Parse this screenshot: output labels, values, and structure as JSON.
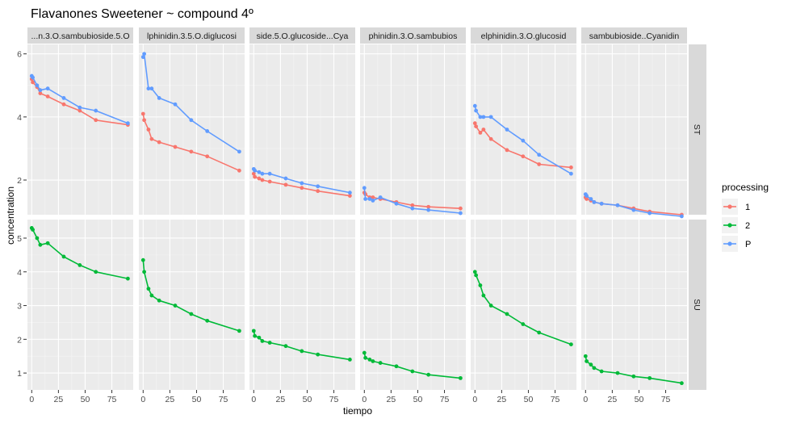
{
  "chart_data": {
    "type": "scatter",
    "title": "Flavanones Sweetener ~ compound 4º",
    "xlabel": "tiempo",
    "ylabel": "concentration",
    "x_ticks": [
      "0",
      "25",
      "50",
      "75"
    ],
    "x_tick_values": [
      0,
      25,
      50,
      75
    ],
    "xlim": [
      -4,
      95
    ],
    "columns": [
      "...n.3.O.sambubioside.5.O",
      "lphinidin.3.5.O.diglucosi",
      "side.5.O.glucoside...Cya",
      "phinidin.3.O.sambubios",
      "elphinidin.3.O.glucosid",
      "sambubioside..Cyanidin"
    ],
    "rows": [
      {
        "label": "ST",
        "ylim": [
          0.9,
          6.3
        ],
        "y_ticks": [
          "2",
          "4",
          "6"
        ],
        "y_tick_values": [
          2,
          4,
          6
        ]
      },
      {
        "label": "SU",
        "ylim": [
          0.5,
          5.55
        ],
        "y_ticks": [
          "1",
          "2",
          "3",
          "4",
          "5"
        ],
        "y_tick_values": [
          1,
          2,
          3,
          4,
          5
        ]
      }
    ],
    "legend": {
      "title": "processing",
      "placement": "right",
      "items": [
        {
          "label": "1",
          "color": "#F8766D"
        },
        {
          "label": "2",
          "color": "#00BA38"
        },
        {
          "label": "P",
          "color": "#619CFF"
        }
      ]
    },
    "x_times": [
      0,
      1,
      5,
      8,
      15,
      30,
      45,
      60,
      90
    ],
    "panels": [
      {
        "row": 0,
        "col": 0,
        "series": [
          {
            "name": "1",
            "color": "#F8766D",
            "points": [
              [
                0,
                5.2
              ],
              [
                1,
                5.1
              ],
              [
                5,
                4.95
              ],
              [
                8,
                4.75
              ],
              [
                15,
                4.65
              ],
              [
                30,
                4.4
              ],
              [
                45,
                4.2
              ],
              [
                60,
                3.9
              ],
              [
                90,
                3.75
              ]
            ]
          },
          {
            "name": "P",
            "color": "#619CFF",
            "points": [
              [
                0,
                5.3
              ],
              [
                1,
                5.25
              ],
              [
                5,
                5.0
              ],
              [
                8,
                4.85
              ],
              [
                15,
                4.9
              ],
              [
                30,
                4.6
              ],
              [
                45,
                4.3
              ],
              [
                60,
                4.2
              ],
              [
                90,
                3.8
              ]
            ]
          }
        ]
      },
      {
        "row": 0,
        "col": 1,
        "series": [
          {
            "name": "1",
            "color": "#F8766D",
            "points": [
              [
                0,
                4.1
              ],
              [
                1,
                3.9
              ],
              [
                5,
                3.6
              ],
              [
                8,
                3.3
              ],
              [
                15,
                3.2
              ],
              [
                30,
                3.05
              ],
              [
                45,
                2.9
              ],
              [
                60,
                2.75
              ],
              [
                90,
                2.3
              ]
            ]
          },
          {
            "name": "P",
            "color": "#619CFF",
            "points": [
              [
                0,
                5.9
              ],
              [
                1,
                6.0
              ],
              [
                5,
                4.9
              ],
              [
                8,
                4.9
              ],
              [
                15,
                4.6
              ],
              [
                30,
                4.4
              ],
              [
                45,
                3.9
              ],
              [
                60,
                3.55
              ],
              [
                90,
                2.9
              ]
            ]
          }
        ]
      },
      {
        "row": 0,
        "col": 2,
        "series": [
          {
            "name": "1",
            "color": "#F8766D",
            "points": [
              [
                0,
                2.2
              ],
              [
                1,
                2.1
              ],
              [
                5,
                2.05
              ],
              [
                8,
                2.0
              ],
              [
                15,
                1.95
              ],
              [
                30,
                1.85
              ],
              [
                45,
                1.75
              ],
              [
                60,
                1.65
              ],
              [
                90,
                1.5
              ]
            ]
          },
          {
            "name": "P",
            "color": "#619CFF",
            "points": [
              [
                0,
                2.35
              ],
              [
                1,
                2.3
              ],
              [
                5,
                2.25
              ],
              [
                8,
                2.2
              ],
              [
                15,
                2.2
              ],
              [
                30,
                2.05
              ],
              [
                45,
                1.9
              ],
              [
                60,
                1.8
              ],
              [
                90,
                1.6
              ]
            ]
          }
        ]
      },
      {
        "row": 0,
        "col": 3,
        "series": [
          {
            "name": "1",
            "color": "#F8766D",
            "points": [
              [
                0,
                1.6
              ],
              [
                1,
                1.55
              ],
              [
                5,
                1.45
              ],
              [
                8,
                1.45
              ],
              [
                15,
                1.4
              ],
              [
                30,
                1.3
              ],
              [
                45,
                1.2
              ],
              [
                60,
                1.15
              ],
              [
                90,
                1.1
              ]
            ]
          },
          {
            "name": "P",
            "color": "#619CFF",
            "points": [
              [
                0,
                1.75
              ],
              [
                1,
                1.4
              ],
              [
                5,
                1.4
              ],
              [
                8,
                1.35
              ],
              [
                15,
                1.45
              ],
              [
                30,
                1.25
              ],
              [
                45,
                1.1
              ],
              [
                60,
                1.05
              ],
              [
                90,
                0.95
              ]
            ]
          }
        ]
      },
      {
        "row": 0,
        "col": 4,
        "series": [
          {
            "name": "1",
            "color": "#F8766D",
            "points": [
              [
                0,
                3.8
              ],
              [
                1,
                3.7
              ],
              [
                5,
                3.5
              ],
              [
                8,
                3.6
              ],
              [
                15,
                3.3
              ],
              [
                30,
                2.95
              ],
              [
                45,
                2.75
              ],
              [
                60,
                2.5
              ],
              [
                90,
                2.4
              ]
            ]
          },
          {
            "name": "P",
            "color": "#619CFF",
            "points": [
              [
                0,
                4.35
              ],
              [
                1,
                4.2
              ],
              [
                5,
                4.0
              ],
              [
                8,
                4.0
              ],
              [
                15,
                4.0
              ],
              [
                30,
                3.6
              ],
              [
                45,
                3.25
              ],
              [
                60,
                2.8
              ],
              [
                90,
                2.2
              ]
            ]
          }
        ]
      },
      {
        "row": 0,
        "col": 5,
        "series": [
          {
            "name": "1",
            "color": "#F8766D",
            "points": [
              [
                0,
                1.45
              ],
              [
                1,
                1.4
              ],
              [
                5,
                1.35
              ],
              [
                8,
                1.3
              ],
              [
                15,
                1.25
              ],
              [
                30,
                1.2
              ],
              [
                45,
                1.1
              ],
              [
                60,
                1.0
              ],
              [
                90,
                0.9
              ]
            ]
          },
          {
            "name": "P",
            "color": "#619CFF",
            "points": [
              [
                0,
                1.55
              ],
              [
                1,
                1.5
              ],
              [
                5,
                1.4
              ],
              [
                8,
                1.3
              ],
              [
                15,
                1.25
              ],
              [
                30,
                1.2
              ],
              [
                45,
                1.05
              ],
              [
                60,
                0.95
              ],
              [
                90,
                0.85
              ]
            ]
          }
        ]
      },
      {
        "row": 1,
        "col": 0,
        "series": [
          {
            "name": "2",
            "color": "#00BA38",
            "points": [
              [
                0,
                5.3
              ],
              [
                1,
                5.25
              ],
              [
                5,
                5.0
              ],
              [
                8,
                4.8
              ],
              [
                15,
                4.85
              ],
              [
                30,
                4.45
              ],
              [
                45,
                4.2
              ],
              [
                60,
                4.0
              ],
              [
                90,
                3.8
              ]
            ]
          }
        ]
      },
      {
        "row": 1,
        "col": 1,
        "series": [
          {
            "name": "2",
            "color": "#00BA38",
            "points": [
              [
                0,
                4.35
              ],
              [
                1,
                4.0
              ],
              [
                5,
                3.5
              ],
              [
                8,
                3.3
              ],
              [
                15,
                3.15
              ],
              [
                30,
                3.0
              ],
              [
                45,
                2.75
              ],
              [
                60,
                2.55
              ],
              [
                90,
                2.25
              ]
            ]
          }
        ]
      },
      {
        "row": 1,
        "col": 2,
        "series": [
          {
            "name": "2",
            "color": "#00BA38",
            "points": [
              [
                0,
                2.25
              ],
              [
                1,
                2.1
              ],
              [
                5,
                2.05
              ],
              [
                8,
                1.95
              ],
              [
                15,
                1.9
              ],
              [
                30,
                1.8
              ],
              [
                45,
                1.65
              ],
              [
                60,
                1.55
              ],
              [
                90,
                1.4
              ]
            ]
          }
        ]
      },
      {
        "row": 1,
        "col": 3,
        "series": [
          {
            "name": "2",
            "color": "#00BA38",
            "points": [
              [
                0,
                1.6
              ],
              [
                1,
                1.45
              ],
              [
                5,
                1.4
              ],
              [
                8,
                1.35
              ],
              [
                15,
                1.3
              ],
              [
                30,
                1.2
              ],
              [
                45,
                1.05
              ],
              [
                60,
                0.95
              ],
              [
                90,
                0.85
              ]
            ]
          }
        ]
      },
      {
        "row": 1,
        "col": 4,
        "series": [
          {
            "name": "2",
            "color": "#00BA38",
            "points": [
              [
                0,
                4.0
              ],
              [
                1,
                3.9
              ],
              [
                5,
                3.6
              ],
              [
                8,
                3.3
              ],
              [
                15,
                3.0
              ],
              [
                30,
                2.75
              ],
              [
                45,
                2.45
              ],
              [
                60,
                2.2
              ],
              [
                90,
                1.85
              ]
            ]
          }
        ]
      },
      {
        "row": 1,
        "col": 5,
        "series": [
          {
            "name": "2",
            "color": "#00BA38",
            "points": [
              [
                0,
                1.5
              ],
              [
                1,
                1.35
              ],
              [
                5,
                1.25
              ],
              [
                8,
                1.15
              ],
              [
                15,
                1.05
              ],
              [
                30,
                1.0
              ],
              [
                45,
                0.9
              ],
              [
                60,
                0.85
              ],
              [
                90,
                0.7
              ]
            ]
          }
        ]
      }
    ]
  }
}
